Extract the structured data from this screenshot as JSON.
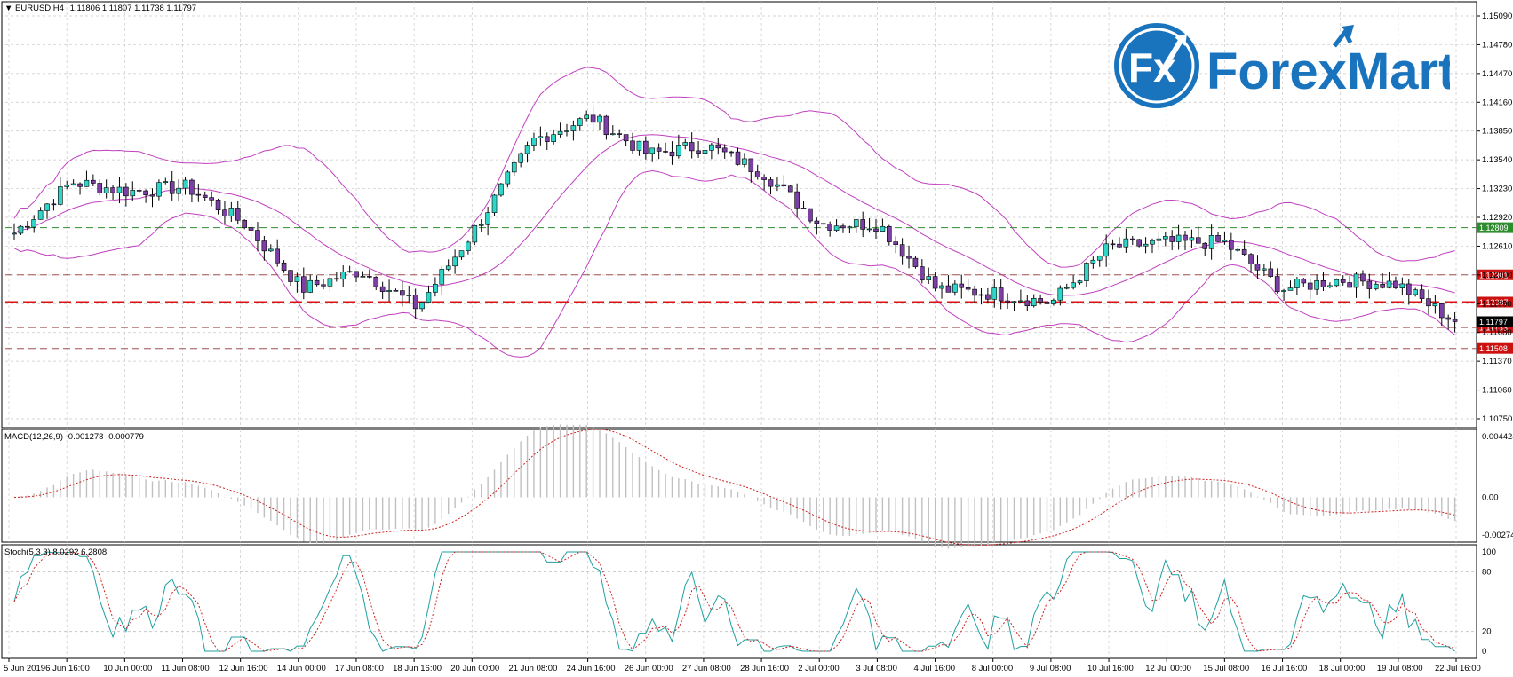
{
  "chart_header": {
    "arrow": "▼",
    "symbol": "EURUSD,H4",
    "ohlc": "1.11806 1.11807 1.11738 1.11797"
  },
  "brand": {
    "badge": "Fx",
    "name": "ForexMart",
    "badge_color": "#1a74bd",
    "text_color": "#1a74bd"
  },
  "colors": {
    "bull_body": "#2fd6c8",
    "bear_body": "#7b3fa5",
    "wick": "#000000",
    "bands": "#c040c0",
    "grid": "#c8c8c8",
    "macd_hist": "#c0c0c0",
    "macd_signal": "#cc2222",
    "stoch_main": "#20a0a0",
    "stoch_signal": "#cc2222",
    "green_line": "#2e8b2e",
    "red_line": "#dd1111",
    "brown_line": "#a05050"
  },
  "price_axis": {
    "ticks": [
      "1.15090",
      "1.14780",
      "1.14470",
      "1.14160",
      "1.13850",
      "1.13540",
      "1.13230",
      "1.12920",
      "1.12610",
      "1.12300",
      "1.11990",
      "1.11680",
      "1.11370",
      "1.11060",
      "1.10750"
    ]
  },
  "levels": [
    {
      "value": "1.12809",
      "style": "green-dash",
      "label_color": "#2e8b2e"
    },
    {
      "value": "1.12301",
      "style": "brown-dash",
      "label_color": "#cc1111"
    },
    {
      "value": "1.12007",
      "style": "red-dash",
      "label_color": "#cc1111"
    },
    {
      "value": "1.11733",
      "style": "brown-dash",
      "label_color": "#cc1111"
    },
    {
      "value": "1.11508",
      "style": "brown-dash",
      "label_color": "#cc1111"
    }
  ],
  "current_price": "1.11797",
  "macd": {
    "label": "MACD(12,26,9) -0.001278 -0.000779",
    "ticks": [
      "0.004424",
      "0.00",
      "-0.002743"
    ]
  },
  "stoch": {
    "label": "Stoch(5,3,3) 8.0292 6.2808",
    "ticks": [
      "100",
      "80",
      "20",
      "0"
    ]
  },
  "time_axis": [
    "5 Jun 2019",
    "6 Jun 16:00",
    "10 Jun 00:00",
    "11 Jun 08:00",
    "12 Jun 16:00",
    "14 Jun 00:00",
    "17 Jun 08:00",
    "18 Jun 16:00",
    "20 Jun 00:00",
    "21 Jun 08:00",
    "24 Jun 16:00",
    "26 Jun 00:00",
    "27 Jun 08:00",
    "28 Jun 16:00",
    "2 Jul 00:00",
    "3 Jul 08:00",
    "4 Jul 16:00",
    "8 Jul 00:00",
    "9 Jul 08:00",
    "10 Jul 16:00",
    "12 Jul 00:00",
    "15 Jul 08:00",
    "16 Jul 16:00",
    "18 Jul 00:00",
    "19 Jul 08:00",
    "22 Jul 16:00"
  ],
  "chart_data": {
    "type": "candlestick",
    "close_path": [
      [
        "5 Jun 2019",
        1.1275
      ],
      [
        "6 Jun 16:00",
        1.133
      ],
      [
        "10 Jun 00:00",
        1.132
      ],
      [
        "11 Jun 08:00",
        1.1325
      ],
      [
        "12 Jun 16:00",
        1.1285
      ],
      [
        "14 Jun 00:00",
        1.1215
      ],
      [
        "17 Jun 08:00",
        1.1235
      ],
      [
        "18 Jun 16:00",
        1.1195
      ],
      [
        "20 Jun 00:00",
        1.128
      ],
      [
        "21 Jun 08:00",
        1.1375
      ],
      [
        "24 Jun 16:00",
        1.14
      ],
      [
        "26 Jun 00:00",
        1.136
      ],
      [
        "27 Jun 08:00",
        1.137
      ],
      [
        "28 Jun 16:00",
        1.134
      ],
      [
        "2 Jul 00:00",
        1.1285
      ],
      [
        "3 Jul 08:00",
        1.1285
      ],
      [
        "4 Jul 16:00",
        1.1215
      ],
      [
        "8 Jul 00:00",
        1.121
      ],
      [
        "9 Jul 08:00",
        1.12
      ],
      [
        "10 Jul 16:00",
        1.126
      ],
      [
        "12 Jul 00:00",
        1.1265
      ],
      [
        "15 Jul 08:00",
        1.1265
      ],
      [
        "16 Jul 16:00",
        1.1215
      ],
      [
        "18 Jul 00:00",
        1.1225
      ],
      [
        "19 Jul 08:00",
        1.122
      ],
      [
        "22 Jul 16:00",
        1.118
      ]
    ]
  }
}
